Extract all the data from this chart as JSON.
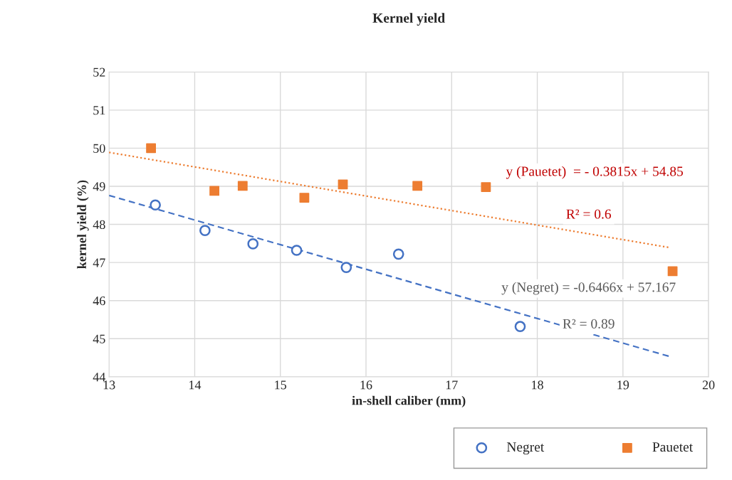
{
  "chart_data": {
    "type": "scatter",
    "title": "Kernel yield",
    "xlabel": "in-shell caliber (mm)",
    "ylabel": "kernel yield (%)",
    "xlim": [
      13,
      20
    ],
    "xticks": [
      13,
      14,
      15,
      16,
      17,
      18,
      19,
      20
    ],
    "ylim": [
      44,
      52
    ],
    "yticks": [
      44,
      45,
      46,
      47,
      48,
      49,
      50,
      51,
      52
    ],
    "grid": true,
    "legend": "bottom right",
    "series": [
      {
        "name": "Negret",
        "color": "#4472c4",
        "marker": "circle",
        "x": [
          13.54,
          14.12,
          14.68,
          15.19,
          15.77,
          16.38,
          17.8
        ],
        "values": [
          48.51,
          47.84,
          47.49,
          47.32,
          46.87,
          47.22,
          45.32
        ]
      },
      {
        "name": "Pauetet",
        "color": "#ed7d31",
        "marker": "square",
        "x": [
          13.49,
          14.23,
          14.56,
          15.28,
          15.73,
          16.6,
          17.4,
          19.58
        ],
        "values": [
          50.0,
          48.88,
          49.01,
          48.7,
          49.05,
          49.01,
          48.98,
          46.77
        ]
      },
      {
        "type": "line",
        "color": "#4472c4",
        "line_style": "dashed",
        "x": [
          13,
          19.55
        ],
        "values": [
          48.76,
          44.53
        ]
      },
      {
        "type": "line",
        "color": "#ed7d31",
        "line_style": "dotted",
        "x": [
          13,
          19.55
        ],
        "values": [
          49.89,
          47.39
        ]
      }
    ],
    "annotations": [
      "y (Pauetet)  = - 0.3815x + 54.85",
      "R² = 0.6",
      "y (Negret) = -0.6466x + 57.167",
      "R² = 0.89"
    ]
  }
}
